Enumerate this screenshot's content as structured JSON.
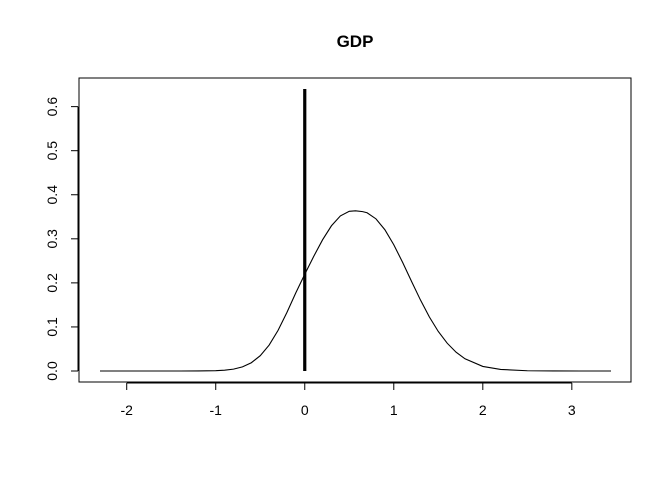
{
  "chart_data": {
    "type": "line",
    "title": "GDP",
    "xlabel": "",
    "ylabel": "",
    "xlim": [
      -2.3,
      3.44
    ],
    "ylim": [
      0,
      0.64
    ],
    "x_ticks": [
      -2,
      -1,
      0,
      1,
      2,
      3
    ],
    "x_tick_labels": [
      "-2",
      "-1",
      "0",
      "1",
      "2",
      "3"
    ],
    "y_ticks": [
      0,
      0.1,
      0.2,
      0.3,
      0.4,
      0.5,
      0.6
    ],
    "y_tick_labels": [
      "0.0",
      "0.1",
      "0.2",
      "0.3",
      "0.4",
      "0.5",
      "0.6"
    ],
    "grid": false,
    "legend": "none",
    "colors": {
      "curve": "#000000",
      "vline": "#000000",
      "frame": "#000000"
    },
    "series": [
      {
        "type": "density",
        "x": [
          -2.3,
          -2.0,
          -1.8,
          -1.6,
          -1.4,
          -1.2,
          -1.0,
          -0.9,
          -0.8,
          -0.7,
          -0.6,
          -0.5,
          -0.4,
          -0.3,
          -0.2,
          -0.1,
          0.0,
          0.1,
          0.2,
          0.3,
          0.4,
          0.5,
          0.57,
          0.65,
          0.7,
          0.8,
          0.9,
          1.0,
          1.1,
          1.2,
          1.3,
          1.4,
          1.5,
          1.6,
          1.7,
          1.8,
          2.0,
          2.2,
          2.5,
          2.8,
          3.1,
          3.44
        ],
        "y": [
          0.0,
          0.0,
          0.0,
          0.0,
          0.0,
          0.0001,
          0.0007,
          0.0018,
          0.0043,
          0.0094,
          0.0188,
          0.0347,
          0.0589,
          0.0921,
          0.133,
          0.1776,
          0.2195,
          0.2599,
          0.2977,
          0.3296,
          0.352,
          0.3624,
          0.3635,
          0.3617,
          0.3591,
          0.3453,
          0.3206,
          0.2866,
          0.2462,
          0.2031,
          0.161,
          0.1226,
          0.0897,
          0.0631,
          0.0426,
          0.0277,
          0.0104,
          0.0035,
          0.0006,
          0.0001,
          0.0,
          0.0
        ]
      },
      {
        "type": "vline",
        "x": 0,
        "y_range": [
          0,
          0.64
        ]
      }
    ]
  }
}
